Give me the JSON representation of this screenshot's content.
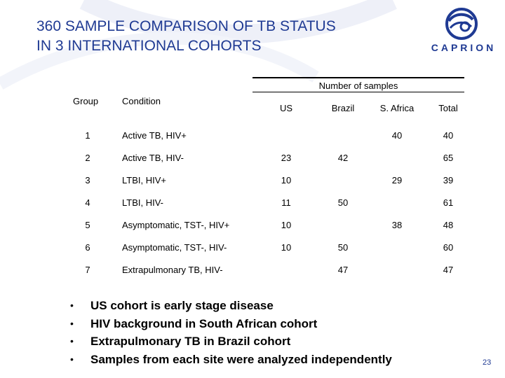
{
  "slide": {
    "title_line1": "360 SAMPLE COMPARISON OF TB STATUS",
    "title_line2": "IN 3 INTERNATIONAL COHORTS",
    "logo_text": "CAPRION",
    "page_number": "23",
    "brand_color": "#1f3a93"
  },
  "table": {
    "group_header": "Number of samples",
    "columns": {
      "group": "Group",
      "condition": "Condition",
      "us": "US",
      "brazil": "Brazil",
      "safrica": "S. Africa",
      "total": "Total"
    },
    "rows": [
      {
        "group": "1",
        "condition": "Active TB, HIV+",
        "us": "",
        "brazil": "",
        "safrica": "40",
        "total": "40"
      },
      {
        "group": "2",
        "condition": "Active TB, HIV-",
        "us": "23",
        "brazil": "42",
        "safrica": "",
        "total": "65"
      },
      {
        "group": "3",
        "condition": "LTBI, HIV+",
        "us": "10",
        "brazil": "",
        "safrica": "29",
        "total": "39"
      },
      {
        "group": "4",
        "condition": "LTBI, HIV-",
        "us": "11",
        "brazil": "50",
        "safrica": "",
        "total": "61"
      },
      {
        "group": "5",
        "condition": "Asymptomatic, TST-, HIV+",
        "us": "10",
        "brazil": "",
        "safrica": "38",
        "total": "48"
      },
      {
        "group": "6",
        "condition": "Asymptomatic, TST-, HIV-",
        "us": "10",
        "brazil": "50",
        "safrica": "",
        "total": "60"
      },
      {
        "group": "7",
        "condition": "Extrapulmonary TB, HIV-",
        "us": "",
        "brazil": "47",
        "safrica": "",
        "total": "47"
      }
    ]
  },
  "bullets": [
    "US cohort is early stage disease",
    "HIV background in South African cohort",
    "Extrapulmonary TB in Brazil cohort",
    "Samples from each site were analyzed independently"
  ],
  "bullet_symbol": "•"
}
